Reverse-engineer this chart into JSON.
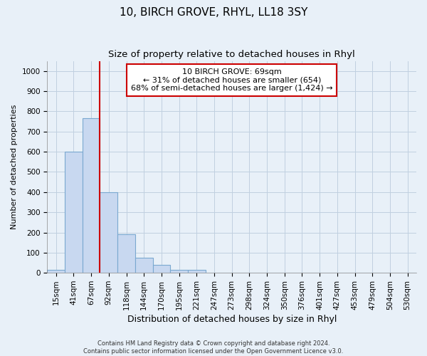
{
  "title": "10, BIRCH GROVE, RHYL, LL18 3SY",
  "subtitle": "Size of property relative to detached houses in Rhyl",
  "xlabel": "Distribution of detached houses by size in Rhyl",
  "ylabel": "Number of detached properties",
  "footer_line1": "Contains HM Land Registry data © Crown copyright and database right 2024.",
  "footer_line2": "Contains public sector information licensed under the Open Government Licence v3.0.",
  "bar_labels": [
    "15sqm",
    "41sqm",
    "67sqm",
    "92sqm",
    "118sqm",
    "144sqm",
    "170sqm",
    "195sqm",
    "221sqm",
    "247sqm",
    "273sqm",
    "298sqm",
    "324sqm",
    "350sqm",
    "376sqm",
    "401sqm",
    "427sqm",
    "453sqm",
    "479sqm",
    "504sqm",
    "530sqm"
  ],
  "bar_values": [
    15,
    600,
    765,
    400,
    190,
    75,
    40,
    15,
    15,
    0,
    0,
    0,
    0,
    0,
    0,
    0,
    0,
    0,
    0,
    0,
    0
  ],
  "bar_color": "#c8d8f0",
  "bar_edge_color": "#7aa8d0",
  "property_line_x": 2.5,
  "annotation_text_line1": "10 BIRCH GROVE: 69sqm",
  "annotation_text_line2": "← 31% of detached houses are smaller (654)",
  "annotation_text_line3": "68% of semi-detached houses are larger (1,424) →",
  "annotation_box_color": "#ffffff",
  "annotation_box_edge": "#cc0000",
  "red_line_color": "#cc0000",
  "grid_color": "#c0d0e0",
  "background_color": "#e8f0f8",
  "plot_background": "#e8f0f8",
  "ylim": [
    0,
    1050
  ],
  "yticks": [
    0,
    100,
    200,
    300,
    400,
    500,
    600,
    700,
    800,
    900,
    1000
  ],
  "title_fontsize": 11,
  "subtitle_fontsize": 9.5,
  "xlabel_fontsize": 9,
  "ylabel_fontsize": 8,
  "tick_fontsize": 7.5,
  "annotation_fontsize": 8,
  "footer_fontsize": 6
}
